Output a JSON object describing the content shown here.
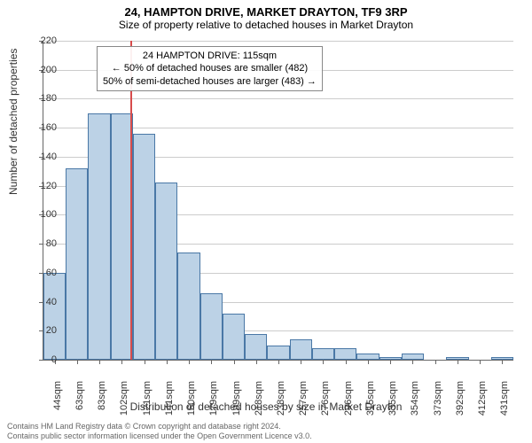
{
  "title": "24, HAMPTON DRIVE, MARKET DRAYTON, TF9 3RP",
  "subtitle": "Size of property relative to detached houses in Market Drayton",
  "y_axis_label": "Number of detached properties",
  "x_axis_label": "Distribution of detached houses by size in Market Drayton",
  "chart": {
    "type": "histogram",
    "ylim": [
      0,
      220
    ],
    "ytick_step": 20,
    "bar_fill": "#bcd2e6",
    "bar_stroke": "#4a78a6",
    "grid_color": "#cccccc",
    "background": "#ffffff",
    "marker_color": "#d84c4c",
    "marker_x_index": 3.9,
    "categories": [
      "44sqm",
      "63sqm",
      "83sqm",
      "102sqm",
      "121sqm",
      "141sqm",
      "160sqm",
      "179sqm",
      "199sqm",
      "218sqm",
      "238sqm",
      "257sqm",
      "276sqm",
      "296sqm",
      "315sqm",
      "335sqm",
      "354sqm",
      "373sqm",
      "392sqm",
      "412sqm",
      "431sqm"
    ],
    "values": [
      60,
      132,
      170,
      170,
      156,
      122,
      74,
      46,
      32,
      18,
      10,
      14,
      8,
      8,
      4,
      2,
      4,
      0,
      2,
      0,
      2
    ]
  },
  "annotation": {
    "line1": "24 HAMPTON DRIVE: 115sqm",
    "line2": "← 50% of detached houses are smaller (482)",
    "line3": "50% of semi-detached houses are larger (483) →"
  },
  "footer": {
    "line1": "Contains HM Land Registry data © Crown copyright and database right 2024.",
    "line2": "Contains public sector information licensed under the Open Government Licence v3.0."
  }
}
